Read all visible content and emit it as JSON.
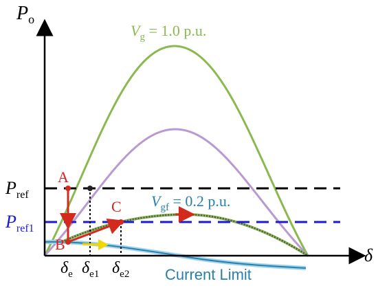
{
  "axes": {
    "y_label": "P",
    "y_label_sub": "o",
    "x_label": "δ"
  },
  "curves": {
    "green": {
      "label_main": "V",
      "label_sub": "g",
      "label_rest": " = 1.0 p.u.",
      "color": "#8ab94f"
    },
    "purple": {
      "color": "#b79ad0"
    },
    "fault": {
      "label_main": "V",
      "label_sub": "gf",
      "label_rest": " = 0.2 p.u.",
      "color": "#2a7fa8"
    },
    "current_limit": {
      "label": "Current Limit",
      "color": "#2a7fa8"
    }
  },
  "reference_lines": {
    "pref": {
      "label_main": "P",
      "label_sub": "ref",
      "color": "#000000"
    },
    "pref1": {
      "label_main": "P",
      "label_sub": "ref1",
      "color": "#1a1ad6"
    }
  },
  "points": {
    "A": "A",
    "B": "B",
    "C": "C"
  },
  "x_ticks": [
    {
      "main": "δ",
      "sub": "e"
    },
    {
      "main": "δ",
      "sub": "e1"
    },
    {
      "main": "δ",
      "sub": "e2"
    }
  ],
  "colors": {
    "arrow_red": "#d42a1e",
    "arrow_yellow": "#f2d600",
    "point_label": "#e02020"
  }
}
